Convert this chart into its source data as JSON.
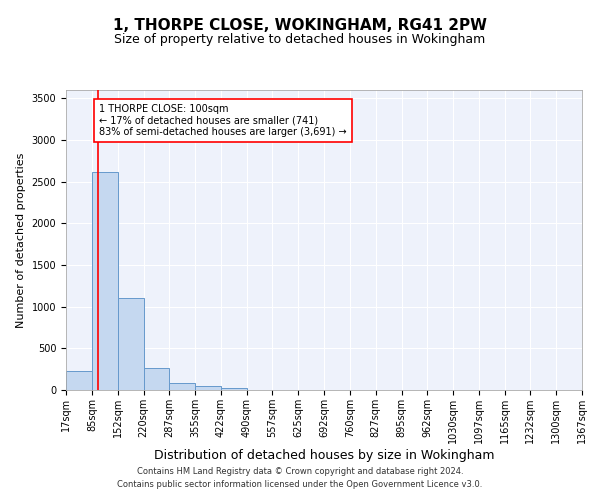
{
  "title": "1, THORPE CLOSE, WOKINGHAM, RG41 2PW",
  "subtitle": "Size of property relative to detached houses in Wokingham",
  "xlabel": "Distribution of detached houses by size in Wokingham",
  "ylabel": "Number of detached properties",
  "footnote1": "Contains HM Land Registry data © Crown copyright and database right 2024.",
  "footnote2": "Contains public sector information licensed under the Open Government Licence v3.0.",
  "annotation_line1": "1 THORPE CLOSE: 100sqm",
  "annotation_line2": "← 17% of detached houses are smaller (741)",
  "annotation_line3": "83% of semi-detached houses are larger (3,691) →",
  "bar_color": "#c5d8f0",
  "bar_edge_color": "#6699cc",
  "red_line_x": 100,
  "bin_edges": [
    17,
    85,
    152,
    220,
    287,
    355,
    422,
    490,
    557,
    625,
    692,
    760,
    827,
    895,
    962,
    1030,
    1097,
    1165,
    1232,
    1300,
    1367
  ],
  "bar_heights": [
    230,
    2620,
    1110,
    260,
    90,
    45,
    30,
    0,
    0,
    0,
    0,
    0,
    0,
    0,
    0,
    0,
    0,
    0,
    0,
    0
  ],
  "ylim": [
    0,
    3600
  ],
  "yticks": [
    0,
    500,
    1000,
    1500,
    2000,
    2500,
    3000,
    3500
  ],
  "title_fontsize": 11,
  "subtitle_fontsize": 9,
  "xlabel_fontsize": 9,
  "ylabel_fontsize": 8,
  "tick_fontsize": 7,
  "annotation_fontsize": 7,
  "footnote_fontsize": 6
}
